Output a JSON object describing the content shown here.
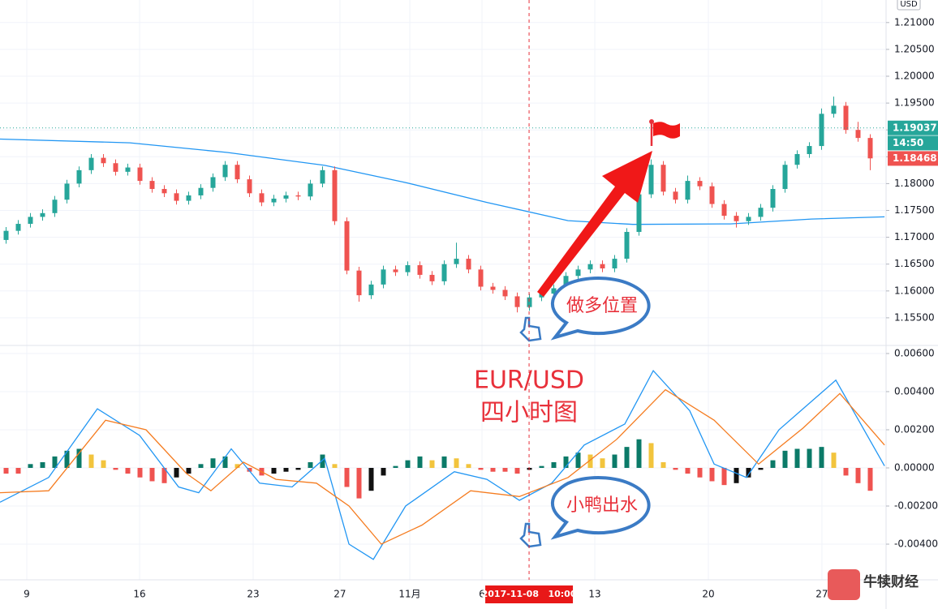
{
  "chart_data": [
    {
      "type": "candlestick",
      "unit": "USD",
      "xlim": [
        0,
        72.8
      ],
      "ylim": [
        1.15,
        1.2142
      ],
      "yticks": [
        {
          "value": 1.21,
          "label": "1.21000"
        },
        {
          "value": 1.205,
          "label": "1.20500"
        },
        {
          "value": 1.2,
          "label": "1.20000"
        },
        {
          "value": 1.195,
          "label": "1.19500"
        },
        {
          "value": 1.19,
          "label": "1.19000"
        },
        {
          "value": 1.185,
          "label": "1.18500"
        },
        {
          "value": 1.18,
          "label": "1.18000"
        },
        {
          "value": 1.175,
          "label": "1.17500"
        },
        {
          "value": 1.17,
          "label": "1.17000"
        },
        {
          "value": 1.165,
          "label": "1.16500"
        },
        {
          "value": 1.16,
          "label": "1.16000"
        },
        {
          "value": 1.155,
          "label": "1.15500"
        }
      ],
      "grid": true,
      "up_color": "#26a69a",
      "down_color": "#ef5350",
      "candles": [
        [
          1.1695,
          1.1719,
          1.1688,
          1.1712
        ],
        [
          1.1712,
          1.1732,
          1.1705,
          1.1725
        ],
        [
          1.1725,
          1.1745,
          1.1718,
          1.1738
        ],
        [
          1.1738,
          1.1752,
          1.1731,
          1.1745
        ],
        [
          1.1745,
          1.1777,
          1.1738,
          1.177
        ],
        [
          1.177,
          1.1807,
          1.1763,
          1.18
        ],
        [
          1.18,
          1.1832,
          1.1793,
          1.1825
        ],
        [
          1.1825,
          1.1855,
          1.1818,
          1.1848
        ],
        [
          1.1848,
          1.1855,
          1.1831,
          1.1838
        ],
        [
          1.1838,
          1.1845,
          1.1815,
          1.1822
        ],
        [
          1.1822,
          1.1837,
          1.1815,
          1.183
        ],
        [
          1.183,
          1.1837,
          1.1798,
          1.1805
        ],
        [
          1.1805,
          1.1812,
          1.1783,
          1.179
        ],
        [
          1.179,
          1.1797,
          1.1775,
          1.1782
        ],
        [
          1.1782,
          1.1789,
          1.1761,
          1.1768
        ],
        [
          1.1768,
          1.1785,
          1.1761,
          1.1778
        ],
        [
          1.1778,
          1.1799,
          1.1771,
          1.1792
        ],
        [
          1.1792,
          1.1819,
          1.1785,
          1.1812
        ],
        [
          1.1812,
          1.1842,
          1.1805,
          1.1835
        ],
        [
          1.1835,
          1.1842,
          1.1801,
          1.1808
        ],
        [
          1.1808,
          1.1815,
          1.1775,
          1.1782
        ],
        [
          1.1782,
          1.1789,
          1.1758,
          1.1765
        ],
        [
          1.1765,
          1.1779,
          1.1758,
          1.1772
        ],
        [
          1.1772,
          1.1785,
          1.1765,
          1.1778
        ],
        [
          1.1778,
          1.1785,
          1.1769,
          1.1776
        ],
        [
          1.1776,
          1.1807,
          1.1769,
          1.18
        ],
        [
          1.18,
          1.1832,
          1.1793,
          1.1825
        ],
        [
          1.1825,
          1.1832,
          1.1723,
          1.173
        ],
        [
          1.173,
          1.1737,
          1.1631,
          1.1638
        ],
        [
          1.1638,
          1.1645,
          1.158,
          1.1592
        ],
        [
          1.1592,
          1.1619,
          1.1585,
          1.1612
        ],
        [
          1.1612,
          1.1647,
          1.1605,
          1.164
        ],
        [
          1.164,
          1.1647,
          1.1628,
          1.1635
        ],
        [
          1.1635,
          1.1655,
          1.1628,
          1.1648
        ],
        [
          1.1648,
          1.1655,
          1.1623,
          1.163
        ],
        [
          1.163,
          1.1637,
          1.1611,
          1.1618
        ],
        [
          1.1618,
          1.1657,
          1.1611,
          1.165
        ],
        [
          1.165,
          1.169,
          1.1643,
          1.166
        ],
        [
          1.166,
          1.1667,
          1.1633,
          1.164
        ],
        [
          1.164,
          1.1647,
          1.1601,
          1.1608
        ],
        [
          1.1608,
          1.1615,
          1.1595,
          1.1602
        ],
        [
          1.1602,
          1.1609,
          1.1583,
          1.159
        ],
        [
          1.159,
          1.1597,
          1.156,
          1.157
        ],
        [
          1.157,
          1.1595,
          1.1563,
          1.1588
        ],
        [
          1.1588,
          1.1602,
          1.1581,
          1.1595
        ],
        [
          1.1595,
          1.1612,
          1.1588,
          1.1605
        ],
        [
          1.1605,
          1.1635,
          1.1598,
          1.1628
        ],
        [
          1.1628,
          1.1647,
          1.1621,
          1.164
        ],
        [
          1.164,
          1.1657,
          1.1633,
          1.165
        ],
        [
          1.165,
          1.1657,
          1.1635,
          1.1642
        ],
        [
          1.1642,
          1.1667,
          1.1635,
          1.166
        ],
        [
          1.166,
          1.1717,
          1.1653,
          1.171
        ],
        [
          1.171,
          1.1787,
          1.1703,
          1.178
        ],
        [
          1.178,
          1.1845,
          1.1773,
          1.1835
        ],
        [
          1.1835,
          1.1842,
          1.1778,
          1.1785
        ],
        [
          1.1785,
          1.1792,
          1.1763,
          1.177
        ],
        [
          1.177,
          1.1815,
          1.1763,
          1.1805
        ],
        [
          1.1805,
          1.1812,
          1.1788,
          1.1795
        ],
        [
          1.1795,
          1.1802,
          1.1755,
          1.1762
        ],
        [
          1.1762,
          1.1769,
          1.1733,
          1.174
        ],
        [
          1.174,
          1.1747,
          1.1718,
          1.173
        ],
        [
          1.173,
          1.1745,
          1.1723,
          1.1738
        ],
        [
          1.1738,
          1.1762,
          1.1731,
          1.1755
        ],
        [
          1.1755,
          1.1797,
          1.1748,
          1.179
        ],
        [
          1.179,
          1.1842,
          1.1783,
          1.1835
        ],
        [
          1.1835,
          1.1862,
          1.1828,
          1.1855
        ],
        [
          1.1855,
          1.1877,
          1.1848,
          1.187
        ],
        [
          1.187,
          1.194,
          1.1863,
          1.193
        ],
        [
          1.193,
          1.1962,
          1.1923,
          1.1945
        ],
        [
          1.1945,
          1.1952,
          1.1893,
          1.19
        ],
        [
          1.19,
          1.1915,
          1.1878,
          1.1885
        ],
        [
          1.1885,
          1.1892,
          1.1825,
          1.1847
        ]
      ],
      "lines": [
        {
          "color": "#2196f3",
          "x": [
            0,
            10.67,
            18.67,
            26.67,
            33.33,
            40,
            46.67,
            52,
            60,
            66.67,
            72.67
          ],
          "values": [
            1.1883,
            1.1876,
            1.1858,
            1.1834,
            1.1802,
            1.1765,
            1.1731,
            1.1724,
            1.1725,
            1.1734,
            1.1738
          ]
        }
      ],
      "marker_price": {
        "value": 1.19037,
        "label": "1.19037"
      },
      "countdown": "14:50",
      "last_price": {
        "value": 1.18468,
        "label": "1.18468"
      },
      "annotations": [
        "EUR/USD",
        "四小时图",
        "做多位置",
        "小鸭出水"
      ],
      "watermark": "牛犊财经"
    },
    {
      "type": "macd",
      "xlim": [
        0,
        72.8
      ],
      "ylim": [
        -0.00587,
        0.00638
      ],
      "yticks": [
        {
          "value": 0.006,
          "label": "0.00600"
        },
        {
          "value": 0.004,
          "label": "0.00400"
        },
        {
          "value": 0.002,
          "label": "0.00200"
        },
        {
          "value": 0,
          "label": "0.00000"
        },
        {
          "value": -0.002,
          "label": "-0.00200"
        },
        {
          "value": -0.004,
          "label": "-0.00400"
        }
      ],
      "xticks": [
        {
          "value": 2.2,
          "label": "9"
        },
        {
          "value": 11.47,
          "label": "16"
        },
        {
          "value": 20.8,
          "label": "23"
        },
        {
          "value": 27.93,
          "label": "27"
        },
        {
          "value": 33.67,
          "label": "11月"
        },
        {
          "value": 39.6,
          "label": "6"
        },
        {
          "value": 48.87,
          "label": "13"
        },
        {
          "value": 58.2,
          "label": "20"
        },
        {
          "value": 67.53,
          "label": "27"
        }
      ],
      "crosshair": {
        "value": 43.47,
        "label": "2017-11-08   10:00"
      },
      "histogram": {
        "values": [
          -0.0003,
          -0.0003,
          0.0002,
          0.0003,
          0.0006,
          0.0009,
          0.001,
          0.0007,
          0.0004,
          -0.0001,
          -0.0003,
          -0.0005,
          -0.0007,
          -0.0008,
          -0.0005,
          -0.0003,
          0.0002,
          0.0005,
          0.0006,
          0.0002,
          -0.0002,
          -0.0004,
          -0.0003,
          -0.0002,
          -0.0001,
          0.0003,
          0.0007,
          0.0002,
          -0.001,
          -0.0016,
          -0.0012,
          -0.0004,
          0.0001,
          0.0004,
          0.0006,
          0.0004,
          0.0006,
          0.0005,
          0.0002,
          -0.0001,
          -0.0002,
          -0.0002,
          -0.0003,
          -0.0001,
          0.0001,
          0.0003,
          0.0006,
          0.0008,
          0.0007,
          0.0005,
          0.0007,
          0.0011,
          0.0015,
          0.0013,
          0.0003,
          -0.0001,
          -0.0003,
          -0.0005,
          -0.0007,
          -0.0009,
          -0.0008,
          -0.0005,
          -0.0001,
          0.0004,
          0.0009,
          0.001,
          0.001,
          0.0011,
          0.0008,
          -0.0004,
          -0.0008,
          -0.0012
        ],
        "colors": {
          "pos_up": "#0b7a68",
          "pos_down": "#f2c43d",
          "neg_down": "#ef5350",
          "neg_up": "#111111"
        }
      },
      "lines": [
        {
          "color": "#2196f3",
          "x": [
            0,
            4,
            8,
            11.47,
            14.67,
            16.33,
            19,
            21.33,
            24,
            26.67,
            28.67,
            30.67,
            33.33,
            37.33,
            40,
            42.67,
            45.33,
            48,
            51.33,
            53.67,
            56.67,
            58.67,
            61.33,
            64,
            68.67,
            72.67
          ],
          "values": [
            -0.0018,
            -0.0005,
            0.0031,
            0.0017,
            -0.001,
            -0.0013,
            0.001,
            -0.0008,
            -0.001,
            0.0005,
            -0.004,
            -0.0048,
            -0.002,
            -0.0002,
            -0.0006,
            -0.0017,
            -0.0008,
            0.0012,
            0.0023,
            0.0051,
            0.003,
            0.0002,
            -0.0005,
            0.002,
            0.0046,
            0.0001
          ]
        },
        {
          "color": "#f57c20",
          "x": [
            0,
            4,
            8.67,
            12,
            15.33,
            17.33,
            20,
            22.67,
            26,
            28.67,
            31.33,
            34.67,
            38.67,
            42.67,
            46.67,
            50.67,
            54.67,
            58.67,
            62.33,
            66,
            69,
            72.67
          ],
          "values": [
            -0.0013,
            -0.0012,
            0.0025,
            0.002,
            -0.0003,
            -0.0012,
            0.0003,
            -0.0006,
            -0.0008,
            -0.002,
            -0.004,
            -0.003,
            -0.0012,
            -0.0015,
            -0.0005,
            0.0015,
            0.0041,
            0.0025,
            0.0002,
            0.0021,
            0.0039,
            0.0012
          ]
        }
      ]
    }
  ]
}
